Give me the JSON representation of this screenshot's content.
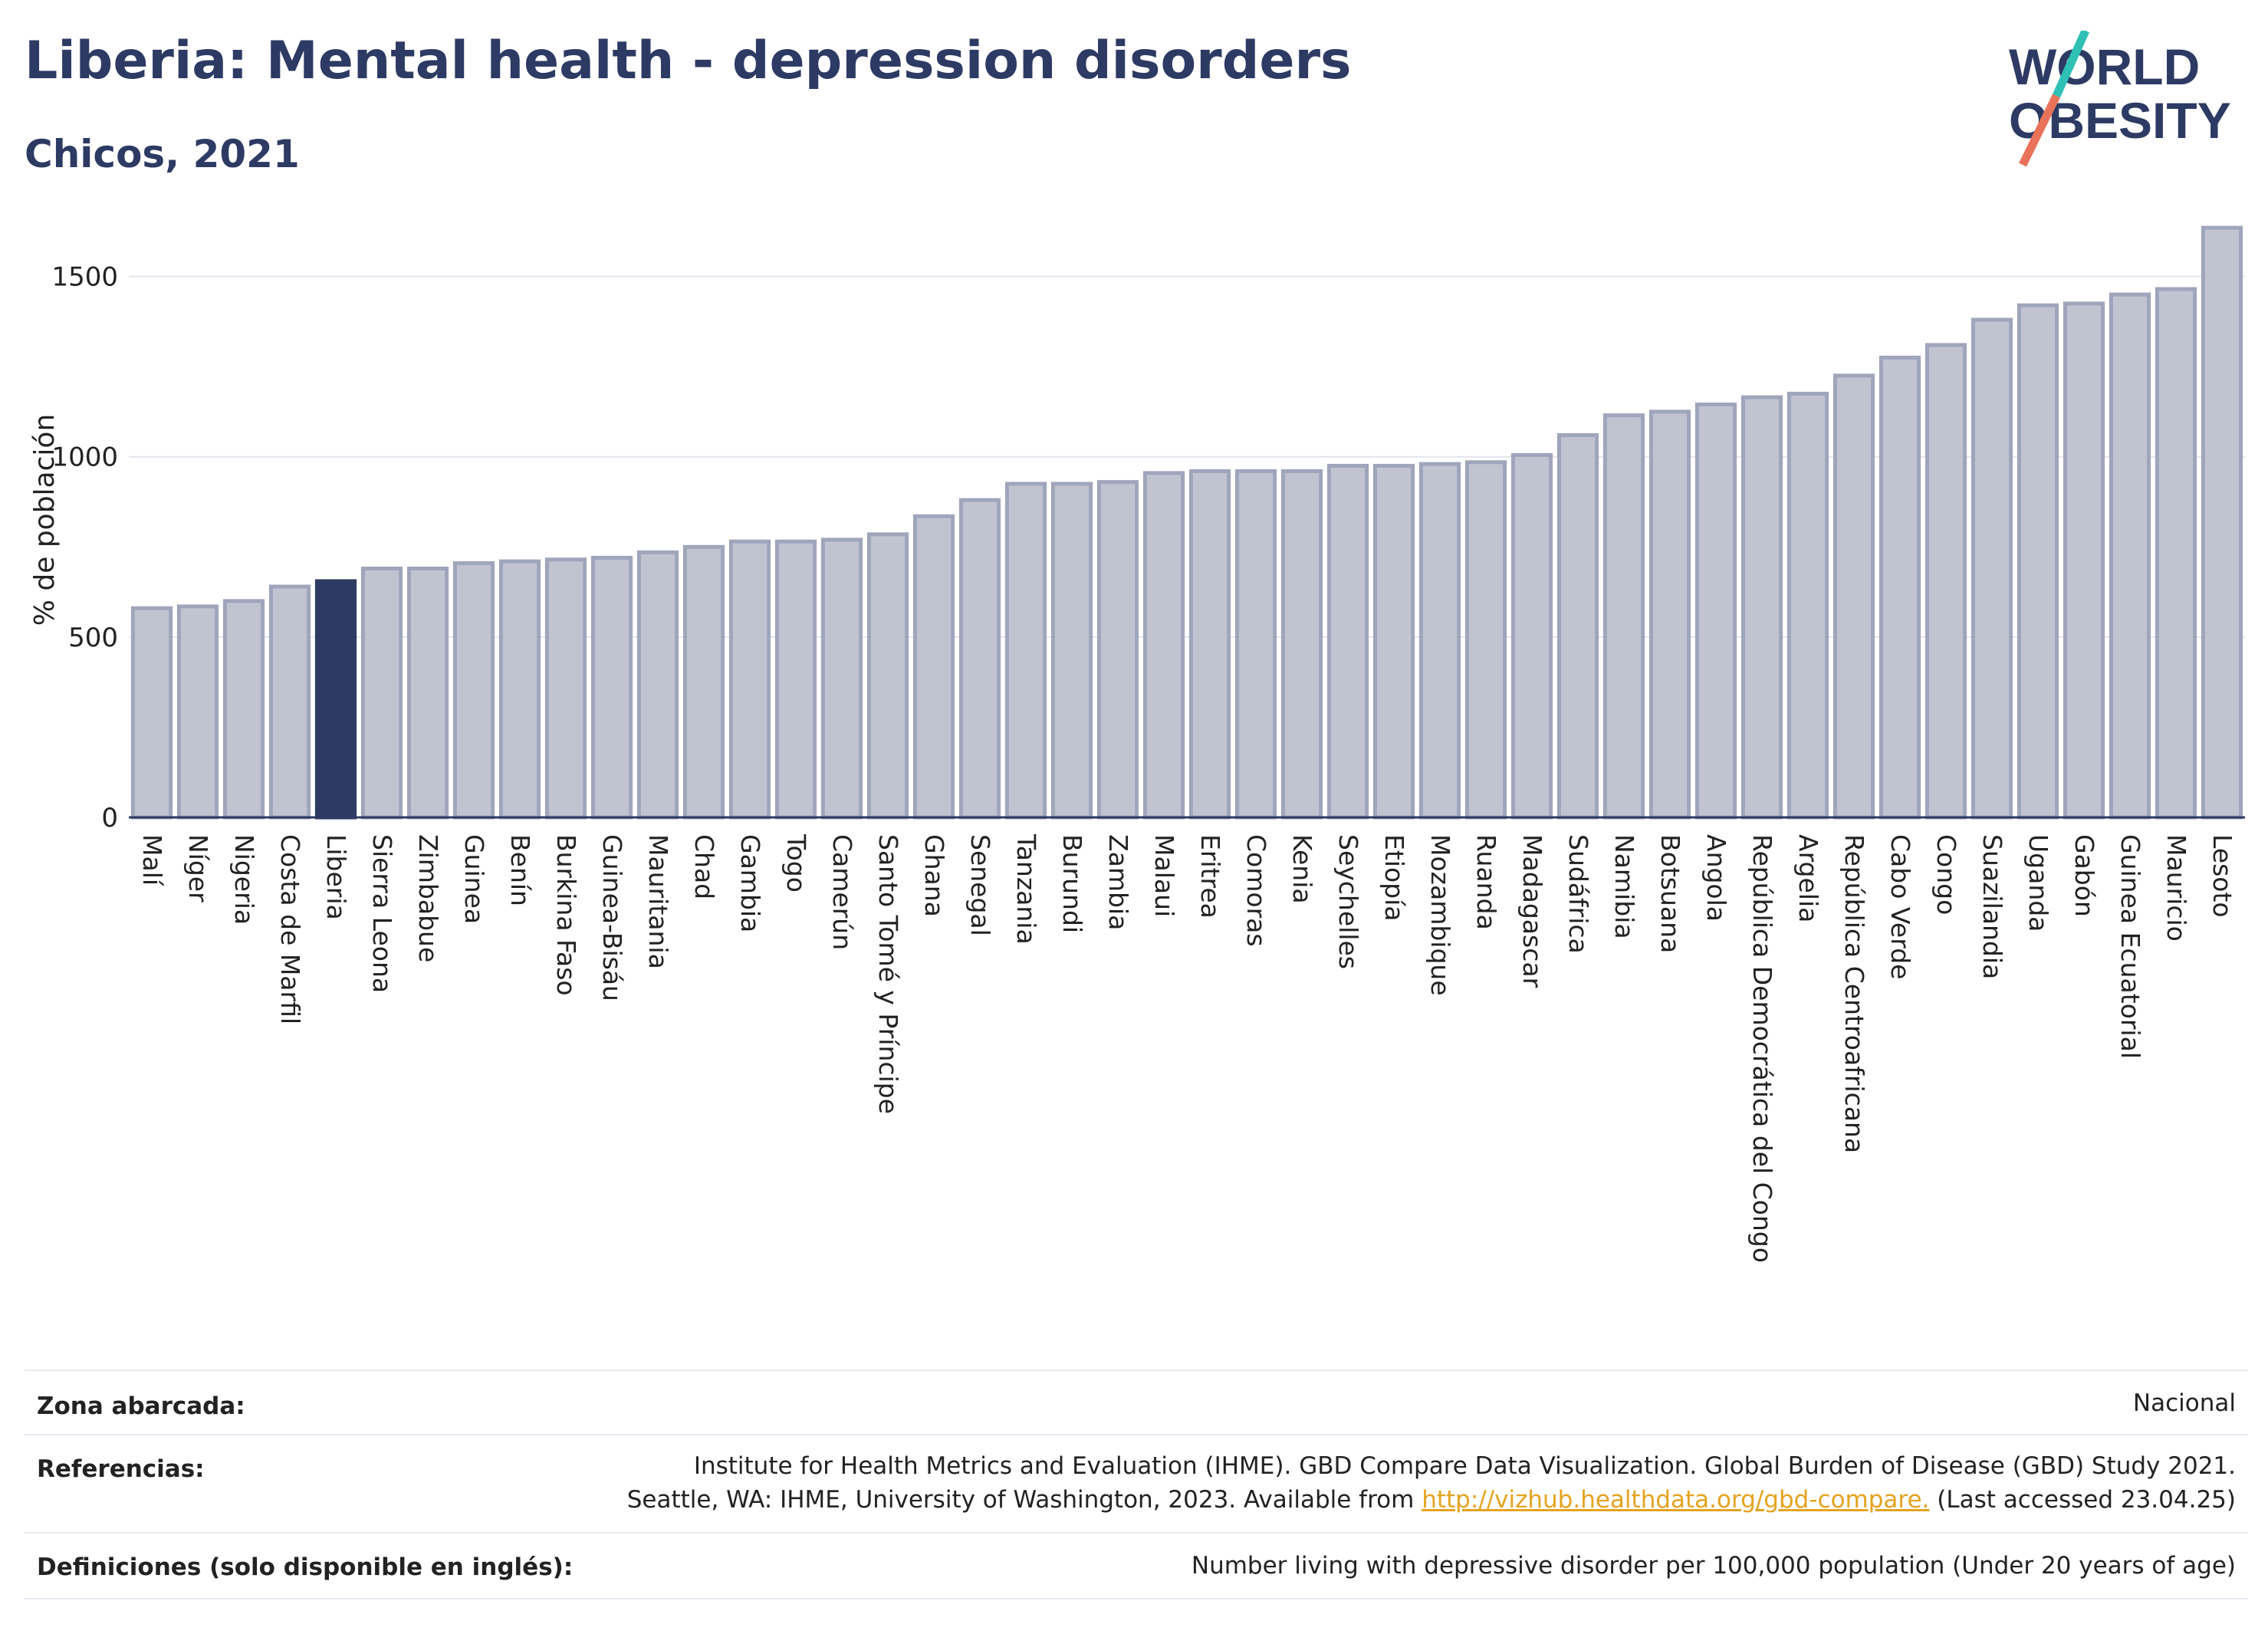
{
  "header": {
    "title": "Liberia: Mental health - depression disorders",
    "subtitle": "Chicos, 2021"
  },
  "logo": {
    "line1": "WORLD",
    "line2": "OBESITY",
    "colors": {
      "text": "#2d3a63",
      "slash_top": "#2fc1b5",
      "slash_bottom": "#e8735a"
    }
  },
  "chart_data": {
    "type": "bar",
    "ylabel": "% de población",
    "ylim": [
      0,
      1650
    ],
    "yticks": [
      0,
      500,
      1000,
      1500
    ],
    "grid": true,
    "highlight": "Liberia",
    "colors": {
      "bar": "#c0c4d1",
      "bar_edge": "#9fa5bb",
      "highlight": "#2d3a63"
    },
    "categories": [
      "Malí",
      "Níger",
      "Nigeria",
      "Costa de Marfil",
      "Liberia",
      "Sierra Leona",
      "Zimbabue",
      "Guinea",
      "Benín",
      "Burkina Faso",
      "Guinea-Bisáu",
      "Mauritania",
      "Chad",
      "Gambia",
      "Togo",
      "Camerún",
      "Santo Tomé y Príncipe",
      "Ghana",
      "Senegal",
      "Tanzania",
      "Burundi",
      "Zambia",
      "Malaui",
      "Eritrea",
      "Comoras",
      "Kenia",
      "Seychelles",
      "Etiopía",
      "Mozambique",
      "Ruanda",
      "Madagascar",
      "Sudáfrica",
      "Namibia",
      "Botsuana",
      "Angola",
      "República Democrática del Congo",
      "Argelia",
      "República Centroafricana",
      "Cabo Verde",
      "Congo",
      "Suazilandia",
      "Uganda",
      "Gabón",
      "Guinea Ecuatorial",
      "Mauricio",
      "Lesoto"
    ],
    "values": [
      580,
      585,
      600,
      640,
      655,
      690,
      690,
      705,
      710,
      715,
      720,
      735,
      750,
      765,
      765,
      770,
      785,
      835,
      880,
      925,
      925,
      930,
      955,
      960,
      960,
      960,
      975,
      975,
      980,
      985,
      1005,
      1060,
      1115,
      1125,
      1145,
      1165,
      1175,
      1225,
      1275,
      1310,
      1380,
      1420,
      1425,
      1450,
      1465,
      1635
    ]
  },
  "meta": {
    "coverage_label": "Zona abarcada:",
    "coverage_value": "Nacional",
    "references_label": "Referencias:",
    "references_line1": "Institute for Health Metrics and Evaluation (IHME). GBD Compare Data Visualization. Global Burden of Disease (GBD) Study 2021.",
    "references_line2_pre": "Seattle, WA: IHME, University of Washington, 2023. Available from ",
    "references_link": "http://vizhub.healthdata.org/gbd-compare.",
    "references_line2_post": " (Last accessed 23.04.25)",
    "definitions_label": "Definiciones (solo disponible en inglés):",
    "definitions_value": "Number living with depressive disorder per 100,000 population (Under 20 years of age)"
  }
}
